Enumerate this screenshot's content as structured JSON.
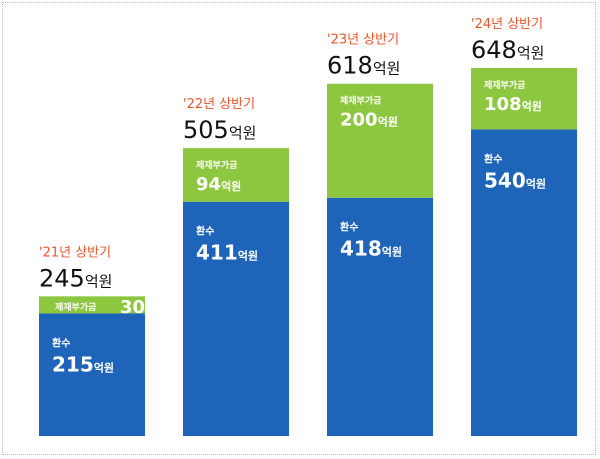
{
  "chart_data": {
    "type": "bar",
    "stacked": true,
    "categories": [
      "'21년 상반기",
      "'22년 상반기",
      "'23년 상반기",
      "'24년 상반기"
    ],
    "totals": [
      245,
      505,
      618,
      648
    ],
    "total_unit": "억원",
    "segment_unit": "억원",
    "series": [
      {
        "name": "환수",
        "values": [
          215,
          411,
          418,
          540
        ],
        "color": "#1e64b8",
        "label_color": "#ffffff"
      },
      {
        "name": "제재부가금",
        "values": [
          30,
          94,
          200,
          108
        ],
        "color": "#8dc63f",
        "label_color": "#ffffff"
      }
    ],
    "category_label_color": "#e8542a",
    "total_color": "#111111",
    "legend": "none",
    "grid": false
  }
}
